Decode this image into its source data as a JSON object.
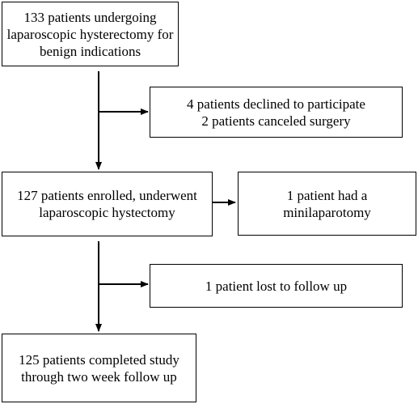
{
  "flow": {
    "screened": {
      "lines": [
        "133 patients undergoing",
        "laparoscopic hysterectomy for",
        "benign indications"
      ]
    },
    "excluded": {
      "lines": [
        "4 patients declined to participate",
        "2 patients canceled surgery"
      ]
    },
    "enrolled": {
      "lines": [
        "127 patients enrolled, underwent",
        "laparoscopic hystectomy"
      ]
    },
    "minilaparotomy": {
      "lines": [
        "1 patient had a",
        "minilaparotomy"
      ]
    },
    "lost": {
      "lines": [
        "1 patient lost to follow up"
      ]
    },
    "completed": {
      "lines": [
        "125 patients completed study",
        "through two week follow up"
      ]
    }
  }
}
